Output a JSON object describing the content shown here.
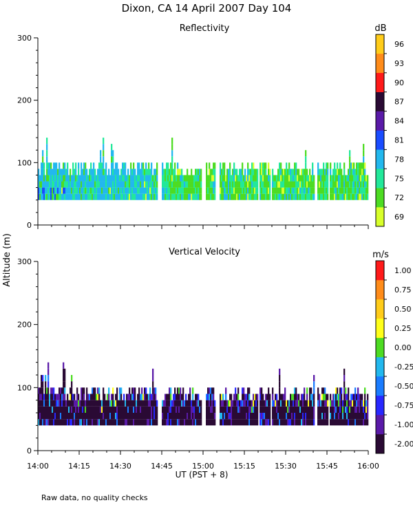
{
  "title": "Dixon, CA 14 April 2007  Day 104",
  "ylabel": "Altitude (m)",
  "xlabel": "UT  (PST + 8)",
  "footnote": "Raw data, no quality checks",
  "chart_data": [
    {
      "type": "heatmap",
      "title": "Reflectivity",
      "x_unit": "minutes after 14:00 UT",
      "xlim": [
        0,
        120
      ],
      "x_ticks": [
        0,
        15,
        30,
        45,
        60,
        75,
        90,
        105,
        120
      ],
      "x_tick_labels": [
        "14:00",
        "14:15",
        "14:30",
        "14:45",
        "15:00",
        "15:15",
        "15:30",
        "15:45",
        "16:00"
      ],
      "ylim": [
        0,
        300
      ],
      "y_ticks": [
        0,
        100,
        200,
        300
      ],
      "colorbar": {
        "unit": "dB",
        "labels": [
          "69",
          "72",
          "75",
          "78",
          "81",
          "84",
          "87",
          "90",
          "93",
          "96"
        ],
        "colors": [
          "#d8ff2a",
          "#4ddc22",
          "#22e89a",
          "#22b8ee",
          "#1a4cff",
          "#5a1aa8",
          "#2a0a34",
          "#ff1a1a",
          "#ff8c1a",
          "#ffcc1a"
        ]
      },
      "echo_base_m": 40,
      "echo_top_m_range": [
        70,
        140
      ],
      "dominant_levels_dB": [
        "72",
        "75",
        "78"
      ]
    },
    {
      "type": "heatmap",
      "title": "Vertical Velocity",
      "x_unit": "minutes after 14:00 UT",
      "xlim": [
        0,
        120
      ],
      "x_ticks": [
        0,
        15,
        30,
        45,
        60,
        75,
        90,
        105,
        120
      ],
      "x_tick_labels": [
        "14:00",
        "14:15",
        "14:30",
        "14:45",
        "15:00",
        "15:15",
        "15:30",
        "15:45",
        "16:00"
      ],
      "ylim": [
        0,
        300
      ],
      "y_ticks": [
        0,
        100,
        200,
        300
      ],
      "colorbar": {
        "unit": "m/s",
        "labels": [
          "-2.00",
          "-1.00",
          "-0.75",
          "-0.50",
          "-0.25",
          "0.00",
          "0.25",
          "0.50",
          "0.75",
          "1.00"
        ],
        "colors": [
          "#2a0a34",
          "#5a1aa8",
          "#2828ff",
          "#1a7cff",
          "#22b8ee",
          "#4ddc22",
          "#ffff1a",
          "#ffcc1a",
          "#ff8c1a",
          "#ff1a1a"
        ]
      },
      "echo_base_m": 40,
      "echo_top_m_range": [
        70,
        140
      ],
      "dominant_levels_ms": [
        "-2.00",
        "-1.00"
      ]
    }
  ]
}
